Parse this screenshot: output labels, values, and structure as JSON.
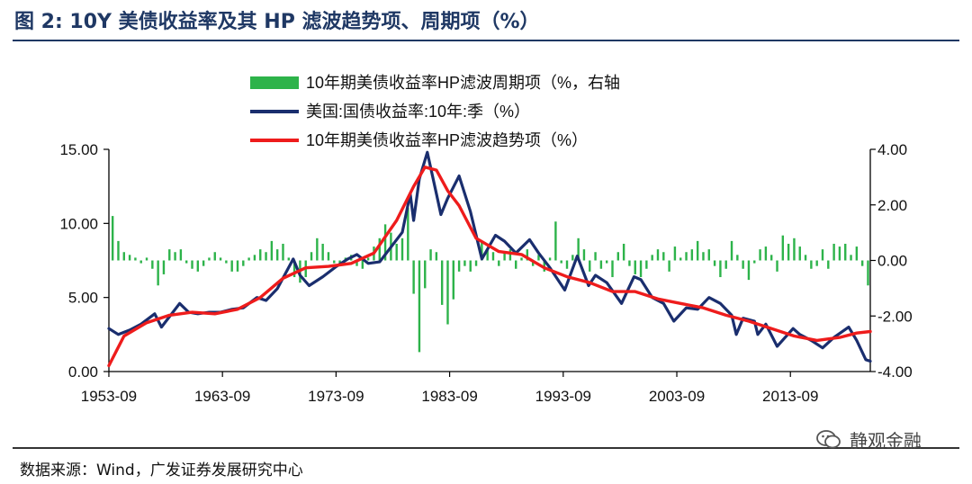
{
  "figure": {
    "title": "图 2:  10Y 美债收益率及其 HP 滤波趋势项、周期项（%）",
    "source": "数据来源：Wind，广发证券发展研究中心",
    "watermark": "静观金融"
  },
  "colors": {
    "title": "#1f3864",
    "cycle_bars": "#2db34a",
    "yield_line": "#1a2e6e",
    "trend_line": "#ee1c1c"
  },
  "chart_data": {
    "type": "line",
    "x_ticks": [
      "1953-09",
      "1963-09",
      "1973-09",
      "1983-09",
      "1993-09",
      "2003-09",
      "2013-09"
    ],
    "x_range": [
      1953.67,
      2020.7
    ],
    "y_left": {
      "range": [
        0,
        15
      ],
      "ticks": [
        "0.00",
        "5.00",
        "10.00",
        "15.00"
      ]
    },
    "y_right": {
      "range": [
        -4,
        4
      ],
      "ticks": [
        "-4.00",
        "-2.00",
        "0.00",
        "2.00",
        "4.00"
      ]
    },
    "grid": false,
    "legend_position": "top-center",
    "legend": [
      "10年期美债收益率HP滤波周期项（%，右轴",
      "美国:国债收益率:10年:季（%）",
      "10年期美债收益率HP滤波趋势项（%）"
    ],
    "series": [
      {
        "name": "美国:国债收益率:10年:季（%）",
        "axis": "left",
        "x": [
          1953.67,
          1954.5,
          1955.5,
          1956.5,
          1957.7,
          1958.3,
          1959.9,
          1960.7,
          1961.5,
          1962.5,
          1963.5,
          1964.5,
          1965.5,
          1966.7,
          1967.5,
          1968.5,
          1969.9,
          1970.5,
          1971.3,
          1972.5,
          1973.7,
          1974.7,
          1975.5,
          1976.5,
          1977.5,
          1978.5,
          1979.5,
          1980.2,
          1980.5,
          1981.0,
          1981.7,
          1982.5,
          1982.9,
          1983.5,
          1984.5,
          1985.5,
          1986.5,
          1987.7,
          1988.5,
          1989.5,
          1990.7,
          1991.5,
          1992.5,
          1993.8,
          1994.9,
          1995.9,
          1996.5,
          1997.5,
          1998.8,
          1999.9,
          2000.5,
          2001.5,
          2002.5,
          2003.4,
          2004.5,
          2005.5,
          2006.5,
          2007.5,
          2008.5,
          2008.9,
          2009.5,
          2010.5,
          2010.8,
          2011.5,
          2012.5,
          2013.9,
          2014.5,
          2015.5,
          2016.5,
          2017.5,
          2018.8,
          2019.5,
          2020.3,
          2020.7
        ],
        "values": [
          2.9,
          2.5,
          2.8,
          3.2,
          3.9,
          3.0,
          4.6,
          4.0,
          3.9,
          4.0,
          4.0,
          4.2,
          4.3,
          5.0,
          4.8,
          5.6,
          7.6,
          6.5,
          5.8,
          6.4,
          7.1,
          7.6,
          7.9,
          7.3,
          7.4,
          8.4,
          9.4,
          12.0,
          10.2,
          13.0,
          14.8,
          12.0,
          10.6,
          11.7,
          13.2,
          10.8,
          7.6,
          9.2,
          8.8,
          8.0,
          8.9,
          8.0,
          7.0,
          5.5,
          7.8,
          5.8,
          6.5,
          6.0,
          4.6,
          6.4,
          6.2,
          5.0,
          4.6,
          3.4,
          4.3,
          4.2,
          5.0,
          4.6,
          3.8,
          2.5,
          3.6,
          3.4,
          2.5,
          3.2,
          1.7,
          2.9,
          2.5,
          2.1,
          1.6,
          2.3,
          3.0,
          2.1,
          0.8,
          0.7
        ]
      },
      {
        "name": "10年期美债收益率HP滤波趋势项（%）",
        "axis": "left",
        "x": [
          1953.67,
          1955.0,
          1957.0,
          1959.0,
          1961.0,
          1963.0,
          1965.0,
          1967.0,
          1969.0,
          1971.0,
          1973.0,
          1975.0,
          1977.0,
          1979.0,
          1980.5,
          1981.5,
          1982.5,
          1983.5,
          1984.5,
          1986.0,
          1988.0,
          1990.0,
          1992.0,
          1994.0,
          1996.0,
          1998.0,
          2000.0,
          2002.0,
          2004.0,
          2006.0,
          2008.0,
          2010.0,
          2012.0,
          2014.0,
          2016.0,
          2018.0,
          2019.5,
          2020.7
        ],
        "values": [
          0.4,
          2.4,
          3.3,
          3.8,
          4.0,
          3.9,
          4.2,
          5.0,
          6.3,
          7.0,
          7.1,
          7.3,
          8.0,
          10.2,
          12.5,
          13.8,
          13.6,
          12.2,
          11.2,
          9.0,
          8.1,
          7.9,
          7.0,
          6.4,
          6.0,
          5.4,
          5.4,
          4.9,
          4.6,
          4.3,
          3.8,
          3.4,
          2.9,
          2.4,
          2.1,
          2.3,
          2.6,
          2.7
        ]
      },
      {
        "name": "10年期美债收益率HP滤波周期项（%，右轴",
        "axis": "right",
        "type": "bar",
        "x": [
          1954.0,
          1954.5,
          1955.0,
          1955.5,
          1956.0,
          1956.5,
          1957.0,
          1957.5,
          1958.0,
          1958.5,
          1959.0,
          1959.5,
          1960.0,
          1960.5,
          1961.0,
          1961.5,
          1962.0,
          1962.5,
          1963.0,
          1963.5,
          1964.0,
          1964.5,
          1965.0,
          1965.5,
          1966.0,
          1966.5,
          1967.0,
          1967.5,
          1968.0,
          1968.5,
          1969.0,
          1969.5,
          1970.0,
          1970.5,
          1971.0,
          1971.5,
          1972.0,
          1972.5,
          1973.0,
          1973.5,
          1974.0,
          1974.5,
          1975.0,
          1975.5,
          1976.0,
          1976.5,
          1977.0,
          1977.5,
          1978.0,
          1978.5,
          1979.0,
          1979.5,
          1980.0,
          1980.5,
          1981.0,
          1981.5,
          1982.0,
          1982.5,
          1983.0,
          1983.5,
          1984.0,
          1984.5,
          1985.0,
          1985.5,
          1986.0,
          1986.5,
          1987.0,
          1987.5,
          1988.0,
          1988.5,
          1989.0,
          1989.5,
          1990.0,
          1990.5,
          1991.0,
          1991.5,
          1992.0,
          1992.5,
          1993.0,
          1993.5,
          1994.0,
          1994.5,
          1995.0,
          1995.5,
          1996.0,
          1996.5,
          1997.0,
          1997.5,
          1998.0,
          1998.5,
          1999.0,
          1999.5,
          2000.0,
          2000.5,
          2001.0,
          2001.5,
          2002.0,
          2002.5,
          2003.0,
          2003.5,
          2004.0,
          2004.5,
          2005.0,
          2005.5,
          2006.0,
          2006.5,
          2007.0,
          2007.5,
          2008.0,
          2008.5,
          2009.0,
          2009.5,
          2010.0,
          2010.5,
          2011.0,
          2011.5,
          2012.0,
          2012.5,
          2013.0,
          2013.5,
          2014.0,
          2014.5,
          2015.0,
          2015.5,
          2016.0,
          2016.5,
          2017.0,
          2017.5,
          2018.0,
          2018.5,
          2019.0,
          2019.5,
          2020.0,
          2020.5
        ],
        "values": [
          1.6,
          0.7,
          0.3,
          0.2,
          0.1,
          -0.1,
          0.1,
          -0.3,
          -0.9,
          -0.5,
          0.4,
          0.3,
          0.4,
          -0.1,
          -0.3,
          -0.4,
          -0.2,
          0.1,
          0.3,
          0.1,
          -0.1,
          -0.4,
          -0.4,
          -0.2,
          0.1,
          0.2,
          0.4,
          0.3,
          0.7,
          0.4,
          0.6,
          0.1,
          -0.6,
          -0.8,
          -0.6,
          0.3,
          0.8,
          0.6,
          0.3,
          -0.1,
          -0.2,
          0.1,
          0.2,
          -0.2,
          -0.3,
          0.1,
          0.5,
          0.8,
          1.3,
          1.0,
          0.6,
          0.8,
          1.9,
          -1.2,
          -3.3,
          -1.0,
          0.4,
          0.3,
          -1.6,
          -2.3,
          -1.4,
          -0.4,
          -0.2,
          -0.4,
          -0.2,
          0.7,
          0.4,
          0.3,
          -0.2,
          0.3,
          0.4,
          -0.3,
          0.1,
          0.4,
          -0.2,
          0.2,
          -0.4,
          0.1,
          1.4,
          -0.1,
          -0.3,
          0.2,
          0.8,
          0.4,
          -0.4,
          0.3,
          -0.3,
          -0.1,
          -0.6,
          0.3,
          0.6,
          -0.2,
          -0.5,
          -0.6,
          -0.3,
          0.2,
          0.4,
          0.3,
          -0.4,
          0.5,
          0.1,
          0.3,
          0.4,
          0.7,
          0.3,
          0.4,
          -0.2,
          -0.6,
          -0.3,
          0.7,
          0.2,
          -0.3,
          -0.7,
          -0.1,
          0.4,
          0.5,
          0.2,
          -0.4,
          0.9,
          0.6,
          0.8,
          0.5,
          0.2,
          -0.3,
          -0.2,
          0.4,
          -0.3,
          0.6,
          0.5,
          0.6,
          0.2,
          0.5,
          -0.2,
          -0.9
        ]
      }
    ]
  }
}
